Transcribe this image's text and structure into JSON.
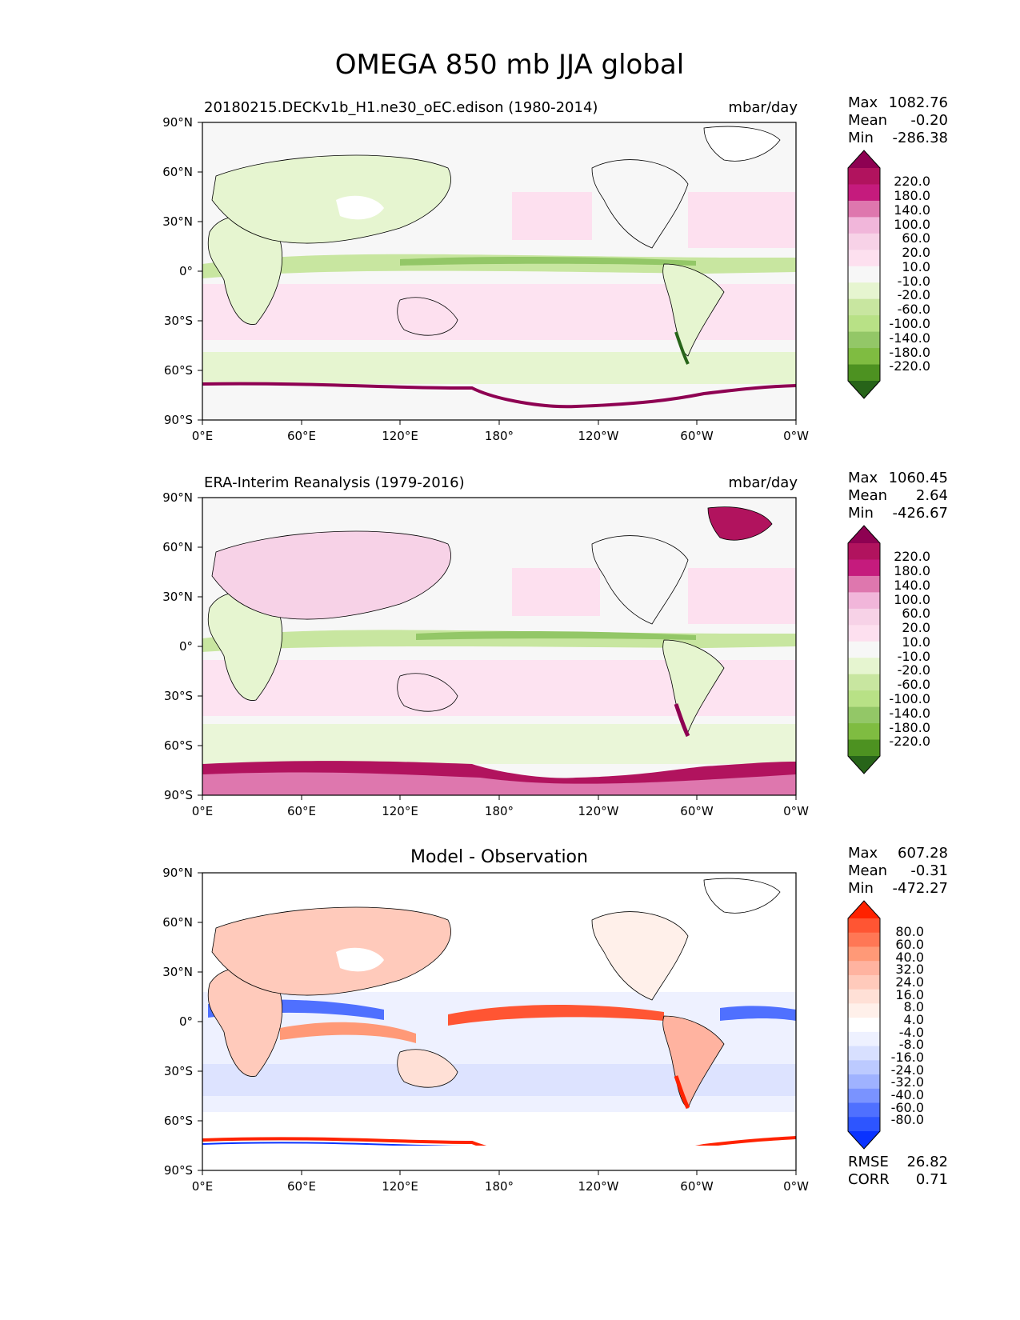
{
  "title": "OMEGA 850 mb JJA global",
  "panels": [
    {
      "id": "model",
      "left_title": "20180215.DECKv1b_H1.ne30_oEC.edison (1980-2014)",
      "right_title": "mbar/day",
      "stats": [
        [
          "Max",
          "1082.76"
        ],
        [
          "Mean",
          "-0.20"
        ],
        [
          "Min",
          "-286.38"
        ]
      ],
      "colorbar_labels": [
        "220.0",
        "180.0",
        "140.0",
        "100.0",
        "60.0",
        "20.0",
        "10.0",
        "-10.0",
        "-20.0",
        "-60.0",
        "-100.0",
        "-140.0",
        "-180.0",
        "-220.0"
      ]
    },
    {
      "id": "obs",
      "left_title": "ERA-Interim Reanalysis (1979-2016)",
      "right_title": "mbar/day",
      "stats": [
        [
          "Max",
          "1060.45"
        ],
        [
          "Mean",
          "2.64"
        ],
        [
          "Min",
          "-426.67"
        ]
      ],
      "colorbar_labels": [
        "220.0",
        "180.0",
        "140.0",
        "100.0",
        "60.0",
        "20.0",
        "10.0",
        "-10.0",
        "-20.0",
        "-60.0",
        "-100.0",
        "-140.0",
        "-180.0",
        "-220.0"
      ]
    },
    {
      "id": "diff",
      "center_title": "Model - Observation",
      "stats": [
        [
          "Max",
          "607.28"
        ],
        [
          "Mean",
          "-0.31"
        ],
        [
          "Min",
          "-472.27"
        ]
      ],
      "colorbar_labels": [
        "80.0",
        "60.0",
        "40.0",
        "32.0",
        "24.0",
        "16.0",
        "8.0",
        "4.0",
        "-4.0",
        "-8.0",
        "-16.0",
        "-24.0",
        "-32.0",
        "-40.0",
        "-60.0",
        "-80.0"
      ],
      "metrics": [
        [
          "RMSE",
          "26.82"
        ],
        [
          "CORR",
          "0.71"
        ]
      ]
    }
  ],
  "colors": {
    "pg_levels": [
      "#8e0152",
      "#b1135e",
      "#c51b7d",
      "#de77ae",
      "#f1b6da",
      "#f7d2e7",
      "#fde0ef",
      "#f7f7f7",
      "#e6f5d0",
      "#c8e6a0",
      "#b8e186",
      "#93c767",
      "#7fbc41",
      "#4d9221",
      "#276419"
    ],
    "br_levels": [
      "#ff2200",
      "#ff5533",
      "#ff7755",
      "#ff9977",
      "#ffb3a0",
      "#ffcabb",
      "#ffe0d6",
      "#fff0ea",
      "#ffffff",
      "#eef1ff",
      "#d8e0ff",
      "#bccaff",
      "#9fb2ff",
      "#7a93ff",
      "#4f70ff",
      "#2d55ff",
      "#0a33ff"
    ]
  },
  "chart_data": {
    "type": "heatmap",
    "projection": "cylindrical equidistant",
    "x_ticks": [
      "0°E",
      "60°E",
      "120°E",
      "180°",
      "120°W",
      "60°W",
      "0°W"
    ],
    "y_ticks": [
      "90°N",
      "60°N",
      "30°N",
      "0°",
      "30°S",
      "60°S",
      "90°S"
    ],
    "xlim": [
      0,
      360
    ],
    "ylim": [
      -90,
      90
    ]
  }
}
